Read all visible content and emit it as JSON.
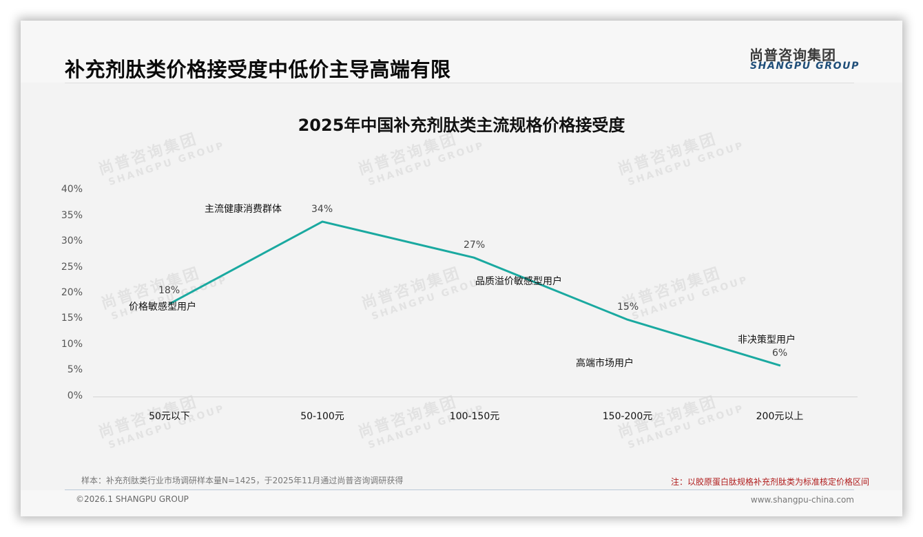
{
  "header": {
    "title": "补充剂肽类价格接受度中低价主导高端有限",
    "logo_cn": "尚普咨询集团",
    "logo_en": "SHANGPU GROUP"
  },
  "watermark": {
    "cn": "尚普咨询集团",
    "en": "SHANGPU GROUP"
  },
  "chart_data": {
    "type": "line",
    "title": "2025年中国补充剂肽类主流规格价格接受度",
    "xlabel": "",
    "ylabel": "",
    "categories": [
      "50元以下",
      "50-100元",
      "100-150元",
      "150-200元",
      "200元以上"
    ],
    "values": [
      18,
      34,
      27,
      15,
      6
    ],
    "value_labels": [
      "18%",
      "34%",
      "27%",
      "15%",
      "6%"
    ],
    "annotations": [
      "价格敏感型用户",
      "主流健康消费群体",
      "品质溢价敏感型用户",
      "高端市场用户",
      "非决策型用户"
    ],
    "y_ticks": [
      "0%",
      "5%",
      "10%",
      "15%",
      "20%",
      "25%",
      "30%",
      "35%",
      "40%"
    ],
    "ylim": [
      0,
      40
    ],
    "grid": false,
    "legend": "none",
    "line_color": "#1aa9a0"
  },
  "footer": {
    "sample": "样本：补充剂肽类行业市场调研样本量N=1425，于2025年11月通过尚普咨询调研获得",
    "remark": "注：以胶原蛋白肽规格补充剂肽类为标准核定价格区间",
    "copyright": "©2026.1 SHANGPU GROUP",
    "website": "www.shangpu-china.com"
  }
}
